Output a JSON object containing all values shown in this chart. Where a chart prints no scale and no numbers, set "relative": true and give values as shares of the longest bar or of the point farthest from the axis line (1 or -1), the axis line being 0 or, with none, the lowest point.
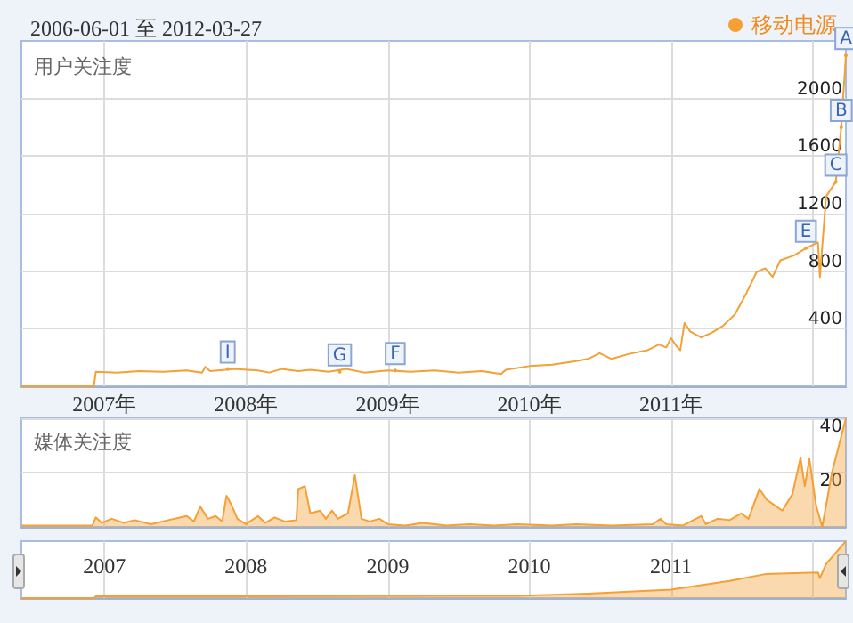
{
  "chart_data": [
    {
      "type": "line",
      "title": "2006-06-01 至 2012-03-27",
      "subtitle": "用户关注度",
      "legend": "top right",
      "grid": true,
      "marker": "none",
      "xlim": [
        "2006-06-01",
        "2012-03-27"
      ],
      "xticks": [
        {
          "value": "2007-01-01",
          "label": "2007年"
        },
        {
          "value": "2008-01-01",
          "label": "2008年"
        },
        {
          "value": "2009-01-01",
          "label": "2009年"
        },
        {
          "value": "2010-01-01",
          "label": "2010年"
        },
        {
          "value": "2011-01-01",
          "label": "2011年"
        },
        {
          "value": "2012-01-01",
          "label": null
        }
      ],
      "ylim": [
        0,
        2400
      ],
      "yticks": [
        400,
        800,
        1200,
        1600,
        2000
      ],
      "x": [
        "2006-06-01",
        "2006-12-05",
        "2006-12-10",
        "2007-02-01",
        "2007-04-01",
        "2007-06-01",
        "2007-08-01",
        "2007-09-10",
        "2007-09-18",
        "2007-10-01",
        "2007-12-01",
        "2008-02-01",
        "2008-03-01",
        "2008-04-01",
        "2008-05-15",
        "2008-06-15",
        "2008-08-01",
        "2008-09-15",
        "2008-11-01",
        "2009-01-01",
        "2009-03-01",
        "2009-05-01",
        "2009-07-01",
        "2009-09-01",
        "2009-10-20",
        "2009-11-01",
        "2010-01-01",
        "2010-03-01",
        "2010-05-01",
        "2010-06-01",
        "2010-07-01",
        "2010-08-01",
        "2010-09-15",
        "2010-11-01",
        "2010-12-01",
        "2010-12-20",
        "2011-01-01",
        "2011-01-15",
        "2011-01-25",
        "2011-02-05",
        "2011-02-20",
        "2011-03-20",
        "2011-04-15",
        "2011-05-15",
        "2011-06-15",
        "2011-07-15",
        "2011-08-10",
        "2011-09-01",
        "2011-09-20",
        "2011-10-10",
        "2011-11-15",
        "2011-12-15",
        "2012-01-15",
        "2012-01-20",
        "2012-02-05",
        "2012-03-01",
        "2012-03-15",
        "2012-03-27"
      ],
      "series": [
        {
          "name": "移动电源",
          "color": "#f4a036",
          "values": [
            0,
            0,
            100,
            95,
            105,
            100,
            110,
            95,
            135,
            105,
            120,
            110,
            95,
            120,
            105,
            115,
            100,
            120,
            95,
            110,
            100,
            110,
            95,
            105,
            85,
            115,
            140,
            150,
            175,
            190,
            230,
            190,
            225,
            250,
            290,
            270,
            335,
            280,
            250,
            440,
            380,
            340,
            370,
            420,
            500,
            650,
            795,
            820,
            760,
            875,
            910,
            960,
            1000,
            760,
            1320,
            1420,
            1800,
            2300
          ]
        }
      ],
      "annotations": [
        {
          "text": "A",
          "x": "2012-03-27",
          "y": 2300
        },
        {
          "text": "B",
          "x": "2012-03-15",
          "y": 1800
        },
        {
          "text": "C",
          "x": "2012-03-01",
          "y": 1420
        },
        {
          "text": "E",
          "x": "2011-12-15",
          "y": 960
        },
        {
          "text": "F",
          "x": "2009-01-20",
          "y": 110
        },
        {
          "text": "G",
          "x": "2008-08-30",
          "y": 100
        },
        {
          "text": "I",
          "x": "2007-11-15",
          "y": 120
        }
      ]
    },
    {
      "type": "area",
      "title": "媒体关注度",
      "grid": true,
      "tick_labels": "y",
      "xlim": [
        "2006-06-01",
        "2012-03-27"
      ],
      "xticks": [
        {
          "value": "2007-01-01",
          "label": null
        },
        {
          "value": "2008-01-01",
          "label": null
        },
        {
          "value": "2009-01-01",
          "label": null
        },
        {
          "value": "2010-01-01",
          "label": null
        },
        {
          "value": "2011-01-01",
          "label": null
        },
        {
          "value": "2012-01-01",
          "label": null
        }
      ],
      "ylim": [
        0,
        40
      ],
      "yticks": [
        20,
        40
      ],
      "x": [
        "2006-06-01",
        "2006-12-01",
        "2006-12-10",
        "2006-12-25",
        "2007-01-20",
        "2007-02-20",
        "2007-03-20",
        "2007-05-01",
        "2007-06-15",
        "2007-08-01",
        "2007-08-20",
        "2007-09-05",
        "2007-09-25",
        "2007-10-15",
        "2007-11-01",
        "2007-11-12",
        "2007-11-25",
        "2007-12-10",
        "2008-01-01",
        "2008-02-01",
        "2008-02-20",
        "2008-03-15",
        "2008-04-10",
        "2008-05-10",
        "2008-05-15",
        "2008-06-01",
        "2008-06-15",
        "2008-07-10",
        "2008-07-25",
        "2008-08-10",
        "2008-08-25",
        "2008-09-20",
        "2008-10-08",
        "2008-10-25",
        "2008-11-15",
        "2008-12-10",
        "2009-01-01",
        "2009-02-15",
        "2009-04-01",
        "2009-06-01",
        "2009-08-01",
        "2009-10-01",
        "2009-12-01",
        "2010-03-01",
        "2010-05-01",
        "2010-08-01",
        "2010-11-15",
        "2010-12-05",
        "2010-12-20",
        "2011-02-01",
        "2011-03-20",
        "2011-04-01",
        "2011-05-01",
        "2011-06-01",
        "2011-07-01",
        "2011-07-20",
        "2011-08-17",
        "2011-09-05",
        "2011-09-25",
        "2011-10-15",
        "2011-11-10",
        "2011-12-01",
        "2011-12-12",
        "2011-12-24",
        "2012-01-10",
        "2012-01-26",
        "2012-02-20",
        "2012-03-27"
      ],
      "series": [
        {
          "color": "#f4a036",
          "values": [
            0.5,
            0.5,
            3.5,
            1.5,
            3,
            1.5,
            2.5,
            1,
            2.5,
            4,
            2,
            7.5,
            3,
            4,
            2,
            11.5,
            8,
            3,
            1,
            4,
            1.5,
            3.5,
            2,
            2.5,
            14,
            15,
            5,
            6,
            3,
            6,
            3,
            5,
            19,
            3,
            2,
            3,
            1,
            0.5,
            1.5,
            0.5,
            1,
            0.5,
            1,
            0.5,
            1,
            0.5,
            1,
            3,
            1,
            0.5,
            4,
            1,
            3,
            2.5,
            5,
            3,
            14,
            10,
            8,
            6,
            12,
            25.5,
            15,
            25,
            8,
            0,
            20,
            40
          ]
        }
      ]
    },
    {
      "type": "area",
      "relative": true,
      "grid": "x",
      "xlim": [
        "2006-06-01",
        "2012-03-27"
      ],
      "xticks": [
        {
          "value": "2007-01-01",
          "label": "2007"
        },
        {
          "value": "2008-01-01",
          "label": "2008"
        },
        {
          "value": "2009-01-01",
          "label": "2009"
        },
        {
          "value": "2010-01-01",
          "label": "2010"
        },
        {
          "value": "2011-01-01",
          "label": "2011"
        },
        {
          "value": "2012-01-01",
          "label": null
        }
      ],
      "x": [
        "2006-06-01",
        "2006-12-05",
        "2006-12-10",
        "2009-12-01",
        "2010-06-01",
        "2011-01-01",
        "2011-06-01",
        "2011-09-01",
        "2012-01-15",
        "2012-01-20",
        "2012-02-05",
        "2012-03-27"
      ],
      "series": [
        {
          "color": "#f4a036",
          "values": [
            0,
            0,
            0.03,
            0.04,
            0.08,
            0.15,
            0.3,
            0.42,
            0.45,
            0.35,
            0.6,
            1
          ]
        }
      ]
    }
  ]
}
